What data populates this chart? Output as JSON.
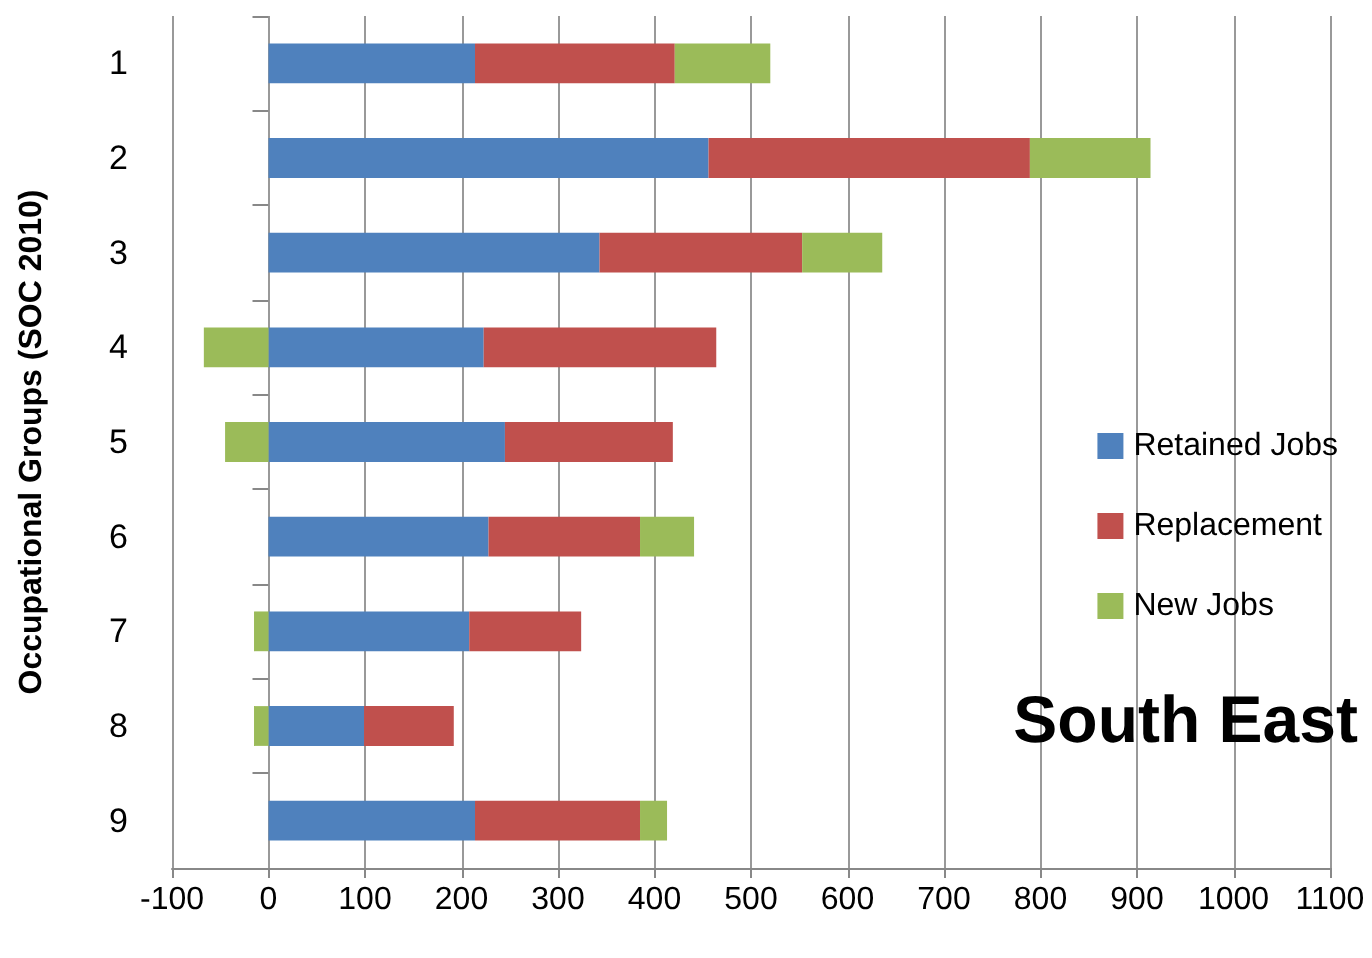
{
  "chart_data": {
    "type": "bar",
    "orientation": "horizontal",
    "stacked": true,
    "title": "South East",
    "ylabel": "Occupational Groups (SOC 2010)",
    "categories": [
      "1",
      "2",
      "3",
      "4",
      "5",
      "6",
      "7",
      "8",
      "9"
    ],
    "series": [
      {
        "name": "Retained Jobs",
        "color": "#4f81bd",
        "values": [
          214,
          456,
          343,
          223,
          245,
          228,
          208,
          99,
          214
        ]
      },
      {
        "name": "Replacement",
        "color": "#c0504d",
        "values": [
          207,
          333,
          210,
          241,
          174,
          157,
          116,
          93,
          171
        ]
      },
      {
        "name": "New Jobs",
        "color": "#9bbb59",
        "values": [
          99,
          125,
          83,
          -67,
          -45,
          56,
          -15,
          -15,
          28
        ]
      }
    ],
    "xlim": [
      -100,
      1100
    ],
    "xticks": [
      -100,
      0,
      100,
      200,
      300,
      400,
      500,
      600,
      700,
      800,
      900,
      1000,
      1100
    ],
    "grid": "x",
    "legend": "right"
  }
}
